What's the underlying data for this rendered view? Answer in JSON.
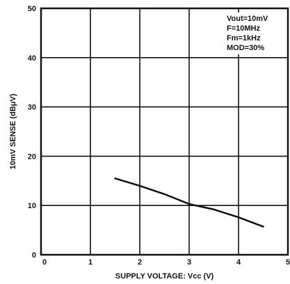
{
  "chart_data": {
    "type": "line",
    "xlabel": "SUPPLY VOLTAGE: Vcc (V)",
    "ylabel": "10mV SENSE (dBμV)",
    "xlim": [
      0,
      5
    ],
    "ylim": [
      0,
      50
    ],
    "x_ticks": [
      "0",
      "1",
      "2",
      "3",
      "4",
      "5"
    ],
    "y_ticks": [
      "0",
      "10",
      "20",
      "30",
      "40",
      "50"
    ],
    "grid": true,
    "annotations": [
      "Vout=10mV",
      "F=10MHz",
      "Fm=1kHz",
      "MOD=30%"
    ],
    "annotation_position": "top-right",
    "series": [
      {
        "x": [
          1.5,
          2.0,
          2.5,
          3.0,
          3.5,
          4.0,
          4.5
        ],
        "y": [
          15.5,
          14.0,
          12.3,
          10.3,
          9.2,
          7.6,
          5.7
        ]
      }
    ]
  }
}
